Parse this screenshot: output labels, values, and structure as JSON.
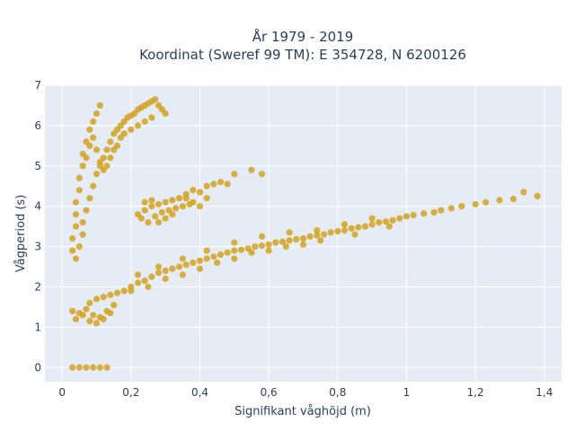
{
  "chart_data": {
    "type": "scatter",
    "title_lines": [
      "År 1979 - 2019",
      "Koordinat (Sweref 99 TM): E 354728, N 6200126"
    ],
    "xlabel": "Signifikant våghöjd (m)",
    "ylabel": "Vågperiod (s)",
    "xlim": [
      -0.05,
      1.45
    ],
    "ylim": [
      -0.35,
      7.0
    ],
    "x_ticks": [
      0,
      0.2,
      0.4,
      0.6,
      0.8,
      1.0,
      1.2,
      1.4
    ],
    "x_tick_labels": [
      "0",
      "0,2",
      "0,4",
      "0,6",
      "0,8",
      "1",
      "1,2",
      "1,4"
    ],
    "y_ticks": [
      0,
      1,
      2,
      3,
      4,
      5,
      6,
      7
    ],
    "y_tick_labels": [
      "0",
      "1",
      "2",
      "3",
      "4",
      "5",
      "6",
      "7"
    ],
    "grid": true,
    "colors": {
      "point": "#d4a21f",
      "plot_bg": "#e5ecf6",
      "grid": "#ffffff",
      "text": "#2a3f5f"
    },
    "series": [
      {
        "points": [
          [
            0.03,
            0.0
          ],
          [
            0.05,
            0.0
          ],
          [
            0.07,
            0.0
          ],
          [
            0.09,
            0.0
          ],
          [
            0.11,
            0.0
          ],
          [
            0.13,
            0.0
          ],
          [
            0.03,
            1.4
          ],
          [
            0.05,
            1.35
          ],
          [
            0.07,
            1.45
          ],
          [
            0.09,
            1.3
          ],
          [
            0.11,
            1.25
          ],
          [
            0.13,
            1.4
          ],
          [
            0.15,
            1.55
          ],
          [
            0.04,
            1.2
          ],
          [
            0.06,
            1.3
          ],
          [
            0.08,
            1.15
          ],
          [
            0.1,
            1.1
          ],
          [
            0.12,
            1.2
          ],
          [
            0.14,
            1.35
          ],
          [
            0.08,
            1.6
          ],
          [
            0.1,
            1.7
          ],
          [
            0.12,
            1.75
          ],
          [
            0.14,
            1.8
          ],
          [
            0.16,
            1.85
          ],
          [
            0.18,
            1.9
          ],
          [
            0.2,
            2.0
          ],
          [
            0.22,
            2.1
          ],
          [
            0.24,
            2.15
          ],
          [
            0.26,
            2.25
          ],
          [
            0.28,
            2.35
          ],
          [
            0.3,
            2.4
          ],
          [
            0.32,
            2.45
          ],
          [
            0.34,
            2.5
          ],
          [
            0.36,
            2.55
          ],
          [
            0.38,
            2.6
          ],
          [
            0.4,
            2.65
          ],
          [
            0.42,
            2.7
          ],
          [
            0.44,
            2.75
          ],
          [
            0.46,
            2.8
          ],
          [
            0.48,
            2.85
          ],
          [
            0.5,
            2.9
          ],
          [
            0.52,
            2.92
          ],
          [
            0.54,
            2.95
          ],
          [
            0.56,
            3.0
          ],
          [
            0.58,
            3.02
          ],
          [
            0.6,
            3.05
          ],
          [
            0.62,
            3.1
          ],
          [
            0.64,
            3.12
          ],
          [
            0.66,
            3.15
          ],
          [
            0.68,
            3.18
          ],
          [
            0.7,
            3.2
          ],
          [
            0.72,
            3.25
          ],
          [
            0.74,
            3.28
          ],
          [
            0.76,
            3.3
          ],
          [
            0.78,
            3.35
          ],
          [
            0.8,
            3.38
          ],
          [
            0.82,
            3.4
          ],
          [
            0.84,
            3.45
          ],
          [
            0.86,
            3.48
          ],
          [
            0.88,
            3.5
          ],
          [
            0.9,
            3.55
          ],
          [
            0.92,
            3.6
          ],
          [
            0.94,
            3.62
          ],
          [
            0.96,
            3.65
          ],
          [
            0.98,
            3.7
          ],
          [
            1.0,
            3.75
          ],
          [
            1.02,
            3.78
          ],
          [
            1.05,
            3.82
          ],
          [
            1.08,
            3.85
          ],
          [
            1.1,
            3.9
          ],
          [
            1.13,
            3.95
          ],
          [
            1.16,
            4.0
          ],
          [
            1.2,
            4.05
          ],
          [
            1.23,
            4.1
          ],
          [
            1.27,
            4.15
          ],
          [
            1.31,
            4.18
          ],
          [
            1.34,
            4.35
          ],
          [
            1.38,
            4.25
          ],
          [
            0.2,
            1.9
          ],
          [
            0.25,
            2.0
          ],
          [
            0.3,
            2.2
          ],
          [
            0.35,
            2.3
          ],
          [
            0.4,
            2.45
          ],
          [
            0.45,
            2.6
          ],
          [
            0.5,
            2.7
          ],
          [
            0.55,
            2.85
          ],
          [
            0.6,
            2.9
          ],
          [
            0.65,
            3.0
          ],
          [
            0.7,
            3.05
          ],
          [
            0.75,
            3.15
          ],
          [
            0.85,
            3.3
          ],
          [
            0.95,
            3.5
          ],
          [
            0.22,
            2.3
          ],
          [
            0.28,
            2.5
          ],
          [
            0.35,
            2.7
          ],
          [
            0.42,
            2.9
          ],
          [
            0.5,
            3.1
          ],
          [
            0.58,
            3.25
          ],
          [
            0.66,
            3.35
          ],
          [
            0.74,
            3.4
          ],
          [
            0.82,
            3.55
          ],
          [
            0.9,
            3.7
          ],
          [
            0.03,
            2.9
          ],
          [
            0.03,
            3.2
          ],
          [
            0.04,
            3.5
          ],
          [
            0.04,
            3.8
          ],
          [
            0.04,
            4.1
          ],
          [
            0.05,
            4.4
          ],
          [
            0.05,
            4.7
          ],
          [
            0.06,
            5.0
          ],
          [
            0.06,
            5.3
          ],
          [
            0.07,
            5.6
          ],
          [
            0.08,
            5.9
          ],
          [
            0.09,
            6.1
          ],
          [
            0.1,
            6.3
          ],
          [
            0.11,
            6.5
          ],
          [
            0.04,
            2.7
          ],
          [
            0.05,
            3.0
          ],
          [
            0.06,
            3.3
          ],
          [
            0.06,
            3.6
          ],
          [
            0.07,
            3.9
          ],
          [
            0.08,
            4.2
          ],
          [
            0.09,
            4.5
          ],
          [
            0.1,
            4.8
          ],
          [
            0.11,
            5.0
          ],
          [
            0.12,
            5.2
          ],
          [
            0.13,
            5.4
          ],
          [
            0.14,
            5.6
          ],
          [
            0.15,
            5.8
          ],
          [
            0.16,
            5.9
          ],
          [
            0.17,
            6.0
          ],
          [
            0.18,
            6.1
          ],
          [
            0.19,
            6.2
          ],
          [
            0.2,
            6.25
          ],
          [
            0.21,
            6.3
          ],
          [
            0.22,
            6.4
          ],
          [
            0.23,
            6.45
          ],
          [
            0.24,
            6.5
          ],
          [
            0.25,
            6.55
          ],
          [
            0.26,
            6.6
          ],
          [
            0.27,
            6.65
          ],
          [
            0.28,
            6.5
          ],
          [
            0.29,
            6.4
          ],
          [
            0.3,
            6.3
          ],
          [
            0.07,
            5.2
          ],
          [
            0.08,
            5.5
          ],
          [
            0.09,
            5.7
          ],
          [
            0.1,
            5.4
          ],
          [
            0.11,
            5.1
          ],
          [
            0.12,
            4.9
          ],
          [
            0.13,
            5.0
          ],
          [
            0.14,
            5.2
          ],
          [
            0.15,
            5.4
          ],
          [
            0.16,
            5.5
          ],
          [
            0.17,
            5.7
          ],
          [
            0.18,
            5.8
          ],
          [
            0.2,
            5.9
          ],
          [
            0.22,
            6.0
          ],
          [
            0.24,
            6.1
          ],
          [
            0.26,
            6.2
          ],
          [
            0.22,
            3.8
          ],
          [
            0.24,
            3.9
          ],
          [
            0.26,
            4.0
          ],
          [
            0.28,
            4.05
          ],
          [
            0.3,
            4.1
          ],
          [
            0.32,
            4.15
          ],
          [
            0.34,
            4.2
          ],
          [
            0.36,
            4.3
          ],
          [
            0.38,
            4.4
          ],
          [
            0.4,
            4.35
          ],
          [
            0.42,
            4.5
          ],
          [
            0.44,
            4.55
          ],
          [
            0.46,
            4.6
          ],
          [
            0.48,
            4.55
          ],
          [
            0.5,
            4.8
          ],
          [
            0.55,
            4.9
          ],
          [
            0.58,
            4.8
          ],
          [
            0.23,
            3.7
          ],
          [
            0.25,
            3.6
          ],
          [
            0.27,
            3.75
          ],
          [
            0.29,
            3.85
          ],
          [
            0.31,
            3.9
          ],
          [
            0.33,
            3.95
          ],
          [
            0.35,
            4.0
          ],
          [
            0.37,
            4.05
          ],
          [
            0.24,
            4.1
          ],
          [
            0.26,
            4.15
          ],
          [
            0.28,
            3.6
          ],
          [
            0.3,
            3.7
          ],
          [
            0.32,
            3.8
          ],
          [
            0.36,
            4.2
          ],
          [
            0.4,
            4.0
          ],
          [
            0.38,
            4.1
          ],
          [
            0.42,
            4.2
          ]
        ]
      }
    ]
  }
}
